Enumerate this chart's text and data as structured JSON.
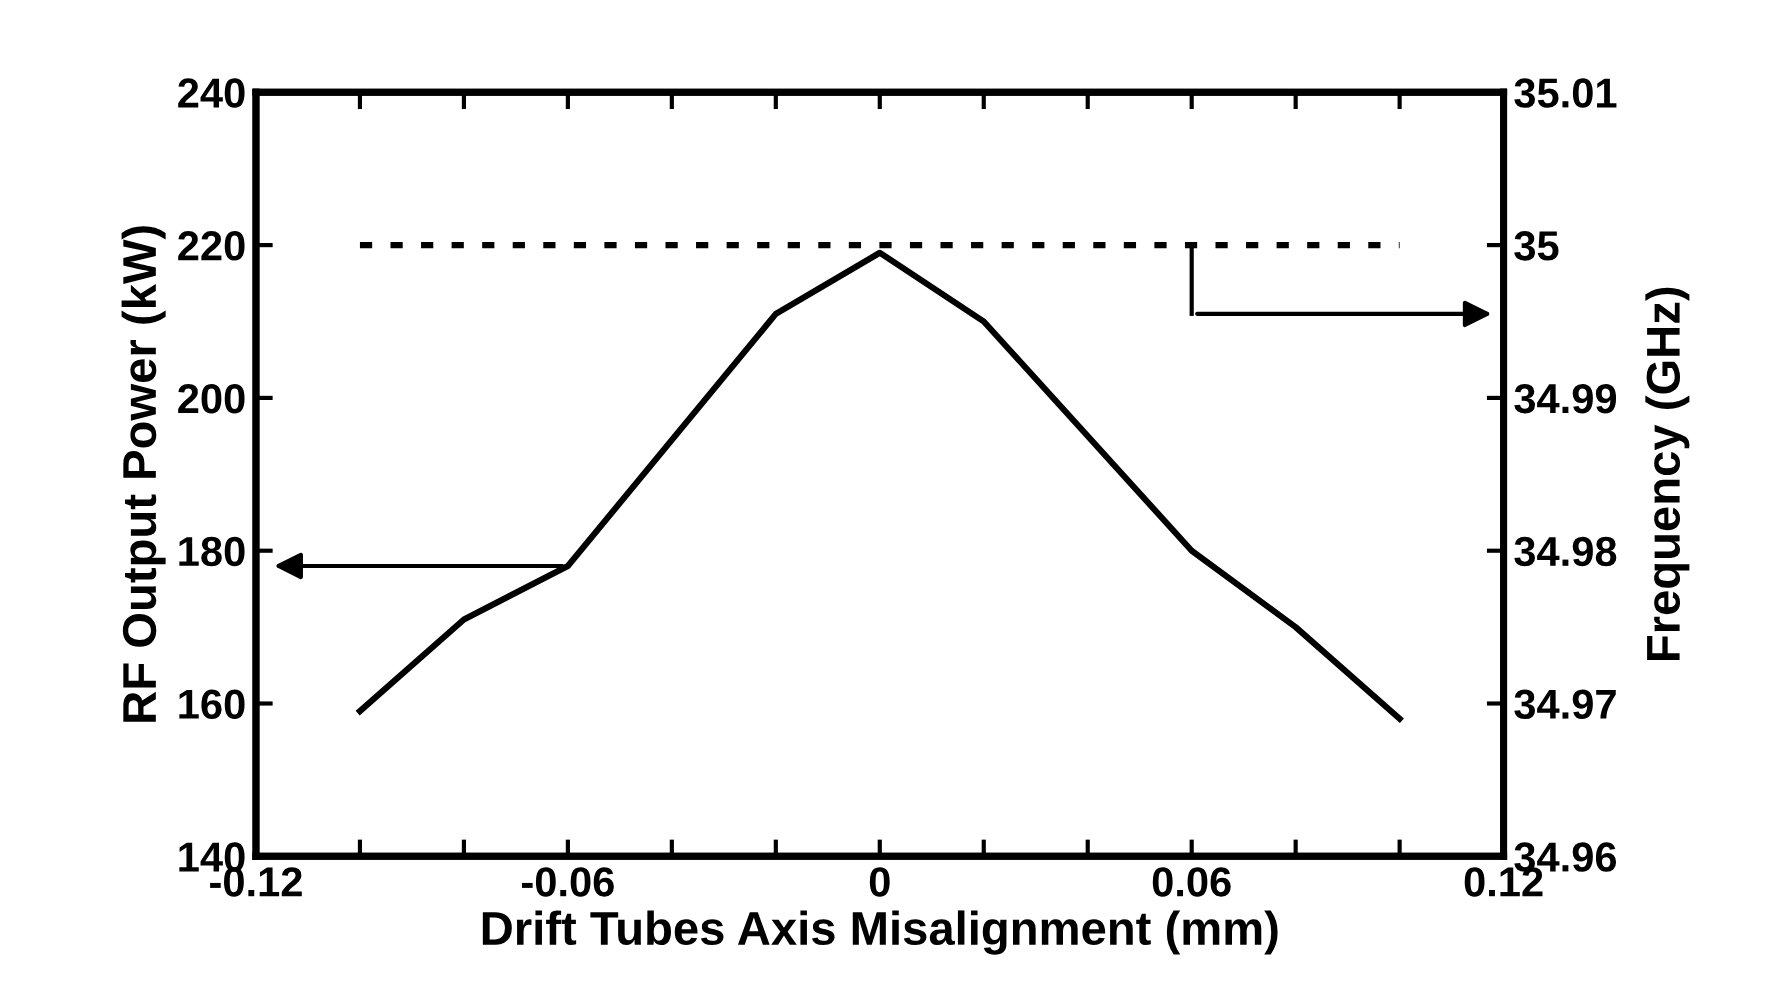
{
  "chart_data": {
    "type": "line",
    "xlabel": "Drift Tubes Axis Misalignment (mm)",
    "ylabel": "RF Output Power (kW)",
    "y2label": "Frequency (GHz)",
    "series": [
      {
        "color": "#000000",
        "line_style": "solid",
        "x": [
          -0.1,
          -0.08,
          -0.06,
          -0.02,
          0,
          0.02,
          0.06,
          0.08,
          0.1
        ],
        "values": [
          159,
          171,
          178,
          211,
          219,
          210,
          180,
          170,
          158
        ]
      },
      {
        "color": "#000000",
        "line_style": "dotted",
        "axis": "y2",
        "x": [
          -0.1,
          0.1
        ],
        "values": [
          35,
          35
        ]
      }
    ],
    "xlim": [
      -0.12,
      0.12
    ],
    "xticks": [
      -0.12,
      -0.06,
      0,
      0.06,
      0.12
    ],
    "ylim": [
      140,
      240
    ],
    "yticks": [
      140,
      160,
      180,
      200,
      220,
      240
    ],
    "y2lim": [
      34.96,
      35.01
    ],
    "y2ticks": [
      34.96,
      34.97,
      34.98,
      34.99,
      35,
      35.01
    ],
    "grid": false,
    "legend": false,
    "marker": "none"
  }
}
